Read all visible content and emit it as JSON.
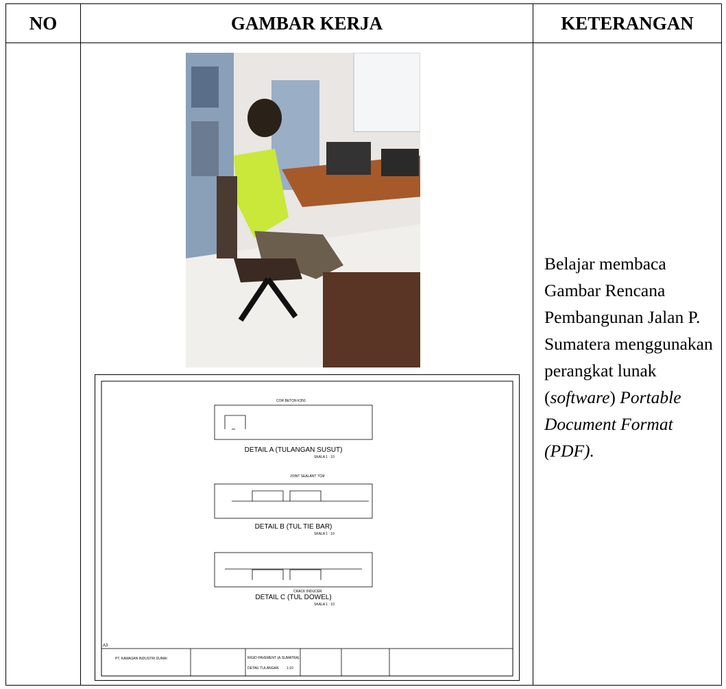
{
  "table": {
    "header": [
      "NO",
      "GAMBAR KERJA",
      "KETERANGAN"
    ],
    "rows": [
      {
        "drawing": {
          "details": [
            {
              "title": "DETAIL A (TULANGAN SUSUT)",
              "scale": "SKALA 1 : 10",
              "note": "COR BETON K350"
            },
            {
              "title": "DETAIL B (TUL TIE BAR)",
              "scale": "SKALA 1 : 10",
              "note": "JOINT SEALANT 7CM"
            },
            {
              "title": "DETAIL C (TUL DOWEL)",
              "scale": "SKALA 1 : 10",
              "note": "CRACK INDUCER"
            }
          ],
          "title_block": {
            "company": "PT. KAWASAN INDUSTRI DUMAI",
            "project": "RIGID PAVEMENT (A.SUMATRA)",
            "sheet": "DETAIL TULANGAN",
            "scale": "1:10",
            "paper": "A3"
          }
        },
        "description": [
          {
            "text": "Belajar membaca Gambar Rencana Pembangunan Jalan P. Sumatera menggunakan perangkat lunak (",
            "italic": false
          },
          {
            "text": "software",
            "italic": true
          },
          {
            "text": ") ",
            "italic": false
          },
          {
            "text": "Portable Document Format (PDF).",
            "italic": true
          }
        ]
      }
    ]
  }
}
